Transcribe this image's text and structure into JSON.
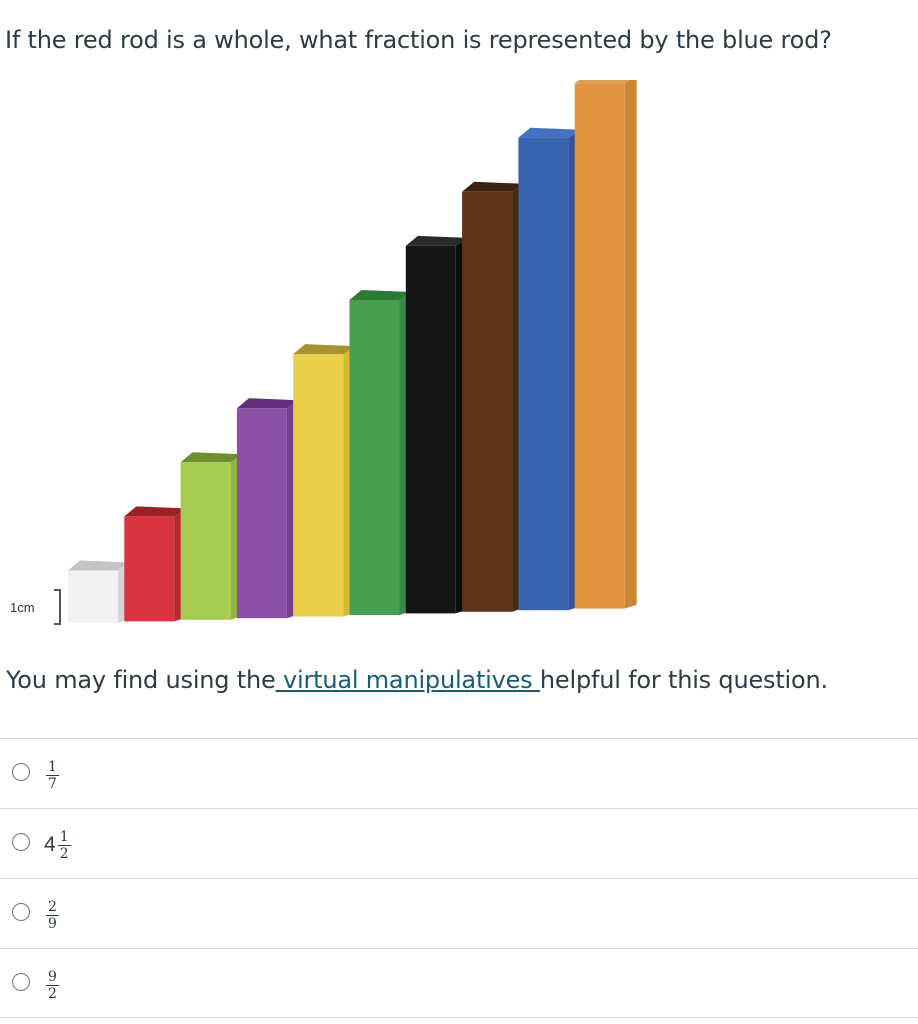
{
  "question": {
    "text": "If the red rod is a whole, what fraction is represented by the blue rod?"
  },
  "figure": {
    "scale_label": "1cm",
    "rods": [
      {
        "color_name": "white",
        "length_cm": 1,
        "front": "#f2f2f2",
        "side": "#d6d6d6",
        "top": "#c4c4c4"
      },
      {
        "color_name": "red",
        "length_cm": 2,
        "front": "#d9333f",
        "side": "#b8262f",
        "top": "#9c1f26"
      },
      {
        "color_name": "light-green",
        "length_cm": 3,
        "front": "#a6cd52",
        "side": "#8fb43f",
        "top": "#6f8f2e"
      },
      {
        "color_name": "purple",
        "length_cm": 4,
        "front": "#8c50a6",
        "side": "#74408b",
        "top": "#62307a"
      },
      {
        "color_name": "yellow",
        "length_cm": 5,
        "front": "#e8d04a",
        "side": "#d5bb34",
        "top": "#a89230"
      },
      {
        "color_name": "dark-green",
        "length_cm": 6,
        "front": "#46a050",
        "side": "#378a41",
        "top": "#2c7a35"
      },
      {
        "color_name": "black",
        "length_cm": 7,
        "front": "#151515",
        "side": "#0c0c0c",
        "top": "#2a2a2a"
      },
      {
        "color_name": "brown",
        "length_cm": 8,
        "front": "#5e3519",
        "side": "#4d2b13",
        "top": "#3c210e"
      },
      {
        "color_name": "blue",
        "length_cm": 9,
        "front": "#3a63b0",
        "side": "#2f5499",
        "top": "#4472c0"
      },
      {
        "color_name": "orange",
        "length_cm": 10,
        "front": "#e1953e",
        "side": "#cc8533",
        "top": "#d9a050"
      }
    ]
  },
  "helper": {
    "prefix": "You may find using the",
    "link_text": " virtual manipulatives ",
    "suffix": "helpful for this question."
  },
  "answers": [
    {
      "whole": "",
      "numerator": "1",
      "denominator": "7"
    },
    {
      "whole": "4",
      "numerator": "1",
      "denominator": "2"
    },
    {
      "whole": "",
      "numerator": "2",
      "denominator": "9"
    },
    {
      "whole": "",
      "numerator": "9",
      "denominator": "2"
    }
  ]
}
